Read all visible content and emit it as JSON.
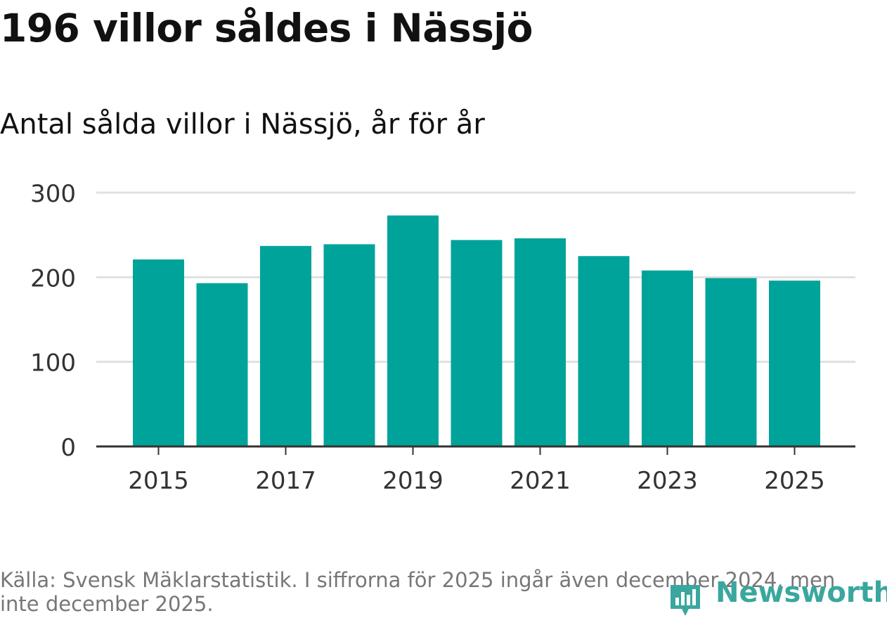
{
  "title": "196 villor såldes i Nässjö",
  "subtitle": "Antal sålda villor i Nässjö, år för år",
  "source": "Källa: Svensk Mäklarstatistik. I siffrorna för 2025 ingår även december 2024, men inte december 2025.",
  "logo": {
    "text": "Newsworthy",
    "icon": "bar-chart-pin-icon"
  },
  "colors": {
    "bar": "#00a39a",
    "grid": "#e0e0e0",
    "axis": "#333333",
    "logo": "#3aa79e"
  },
  "chart_data": {
    "type": "bar",
    "title": "196 villor såldes i Nässjö",
    "subtitle": "Antal sålda villor i Nässjö, år för år",
    "categories": [
      "2015",
      "2016",
      "2017",
      "2018",
      "2019",
      "2020",
      "2021",
      "2022",
      "2023",
      "2024",
      "2025"
    ],
    "values": [
      221,
      193,
      237,
      239,
      273,
      244,
      246,
      225,
      208,
      199,
      196
    ],
    "xticks": [
      "2015",
      "2017",
      "2019",
      "2021",
      "2023",
      "2025"
    ],
    "yticks": [
      0,
      100,
      200,
      300
    ],
    "ylim": [
      0,
      300
    ],
    "xlabel": "",
    "ylabel": "",
    "grid": true
  }
}
